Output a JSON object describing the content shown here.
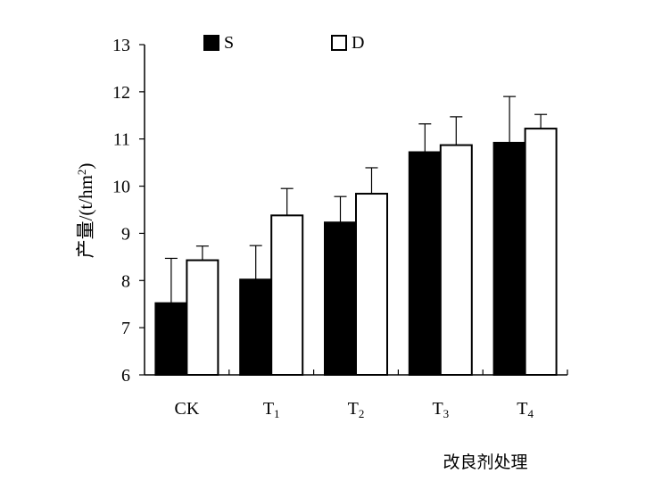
{
  "chart_data": {
    "type": "bar",
    "title": "",
    "ylabel": {
      "main": "产量/(t/hm",
      "sup": "2",
      "close": ")"
    },
    "xlabel": "改良剂处理",
    "ylim": [
      6,
      13
    ],
    "yticks": [
      "6",
      "7",
      "8",
      "9",
      "10",
      "11",
      "12",
      "13"
    ],
    "categories": [
      {
        "main": "CK",
        "sub": ""
      },
      {
        "main": "T",
        "sub": "1"
      },
      {
        "main": "T",
        "sub": "2"
      },
      {
        "main": "T",
        "sub": "3"
      },
      {
        "main": "T",
        "sub": "4"
      }
    ],
    "series": [
      {
        "name": "S",
        "fill": "#000000",
        "values": [
          7.52,
          8.02,
          9.23,
          10.72,
          10.92
        ],
        "errors": [
          0.95,
          0.72,
          0.55,
          0.6,
          0.98
        ]
      },
      {
        "name": "D",
        "fill": "#ffffff",
        "values": [
          8.43,
          9.38,
          9.84,
          10.87,
          11.22
        ],
        "errors": [
          0.3,
          0.57,
          0.55,
          0.6,
          0.3
        ]
      }
    ],
    "legend": {
      "placement": "top"
    },
    "grid": false
  }
}
